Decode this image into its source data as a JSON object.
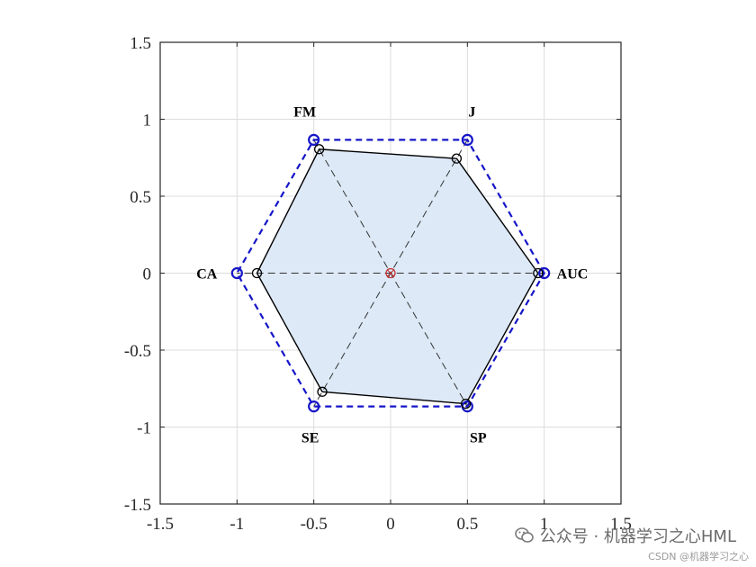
{
  "chart_data": {
    "type": "radar",
    "xlim": [
      -1.5,
      1.5
    ],
    "ylim": [
      -1.5,
      1.5
    ],
    "xticks": [
      -1.5,
      -1,
      -0.5,
      0,
      0.5,
      1,
      1.5
    ],
    "yticks": [
      -1.5,
      -1,
      -0.5,
      0,
      0.5,
      1,
      1.5
    ],
    "xtick_labels": [
      "-1.5",
      "-1",
      "-0.5",
      "0",
      "0.5",
      "1",
      "1.5"
    ],
    "ytick_labels": [
      "-1.5",
      "-1",
      "-0.5",
      "0",
      "0.5",
      "1",
      "1.5"
    ],
    "grid": true,
    "axes": [
      "AUC",
      "J",
      "FM",
      "CA",
      "SE",
      "SP"
    ],
    "angles_deg": [
      0,
      60,
      120,
      180,
      240,
      300
    ],
    "reference": {
      "values": [
        1,
        1,
        1,
        1,
        1,
        1
      ],
      "line_color": "#1515c8",
      "line_style": "dashed"
    },
    "series": [
      {
        "values": [
          0.96,
          0.86,
          0.93,
          0.87,
          0.89,
          0.98
        ],
        "fill_color": "#dde9f7",
        "line_color": "#000000"
      }
    ],
    "center_marker_color": "#c03030"
  },
  "watermark": {
    "main": "公众号 · 机器学习之心HML",
    "csdn": "CSDN @机器学习之心"
  },
  "colors": {
    "grid": "#dcdcdc",
    "axes": "#262626",
    "spokes": "#333333"
  }
}
